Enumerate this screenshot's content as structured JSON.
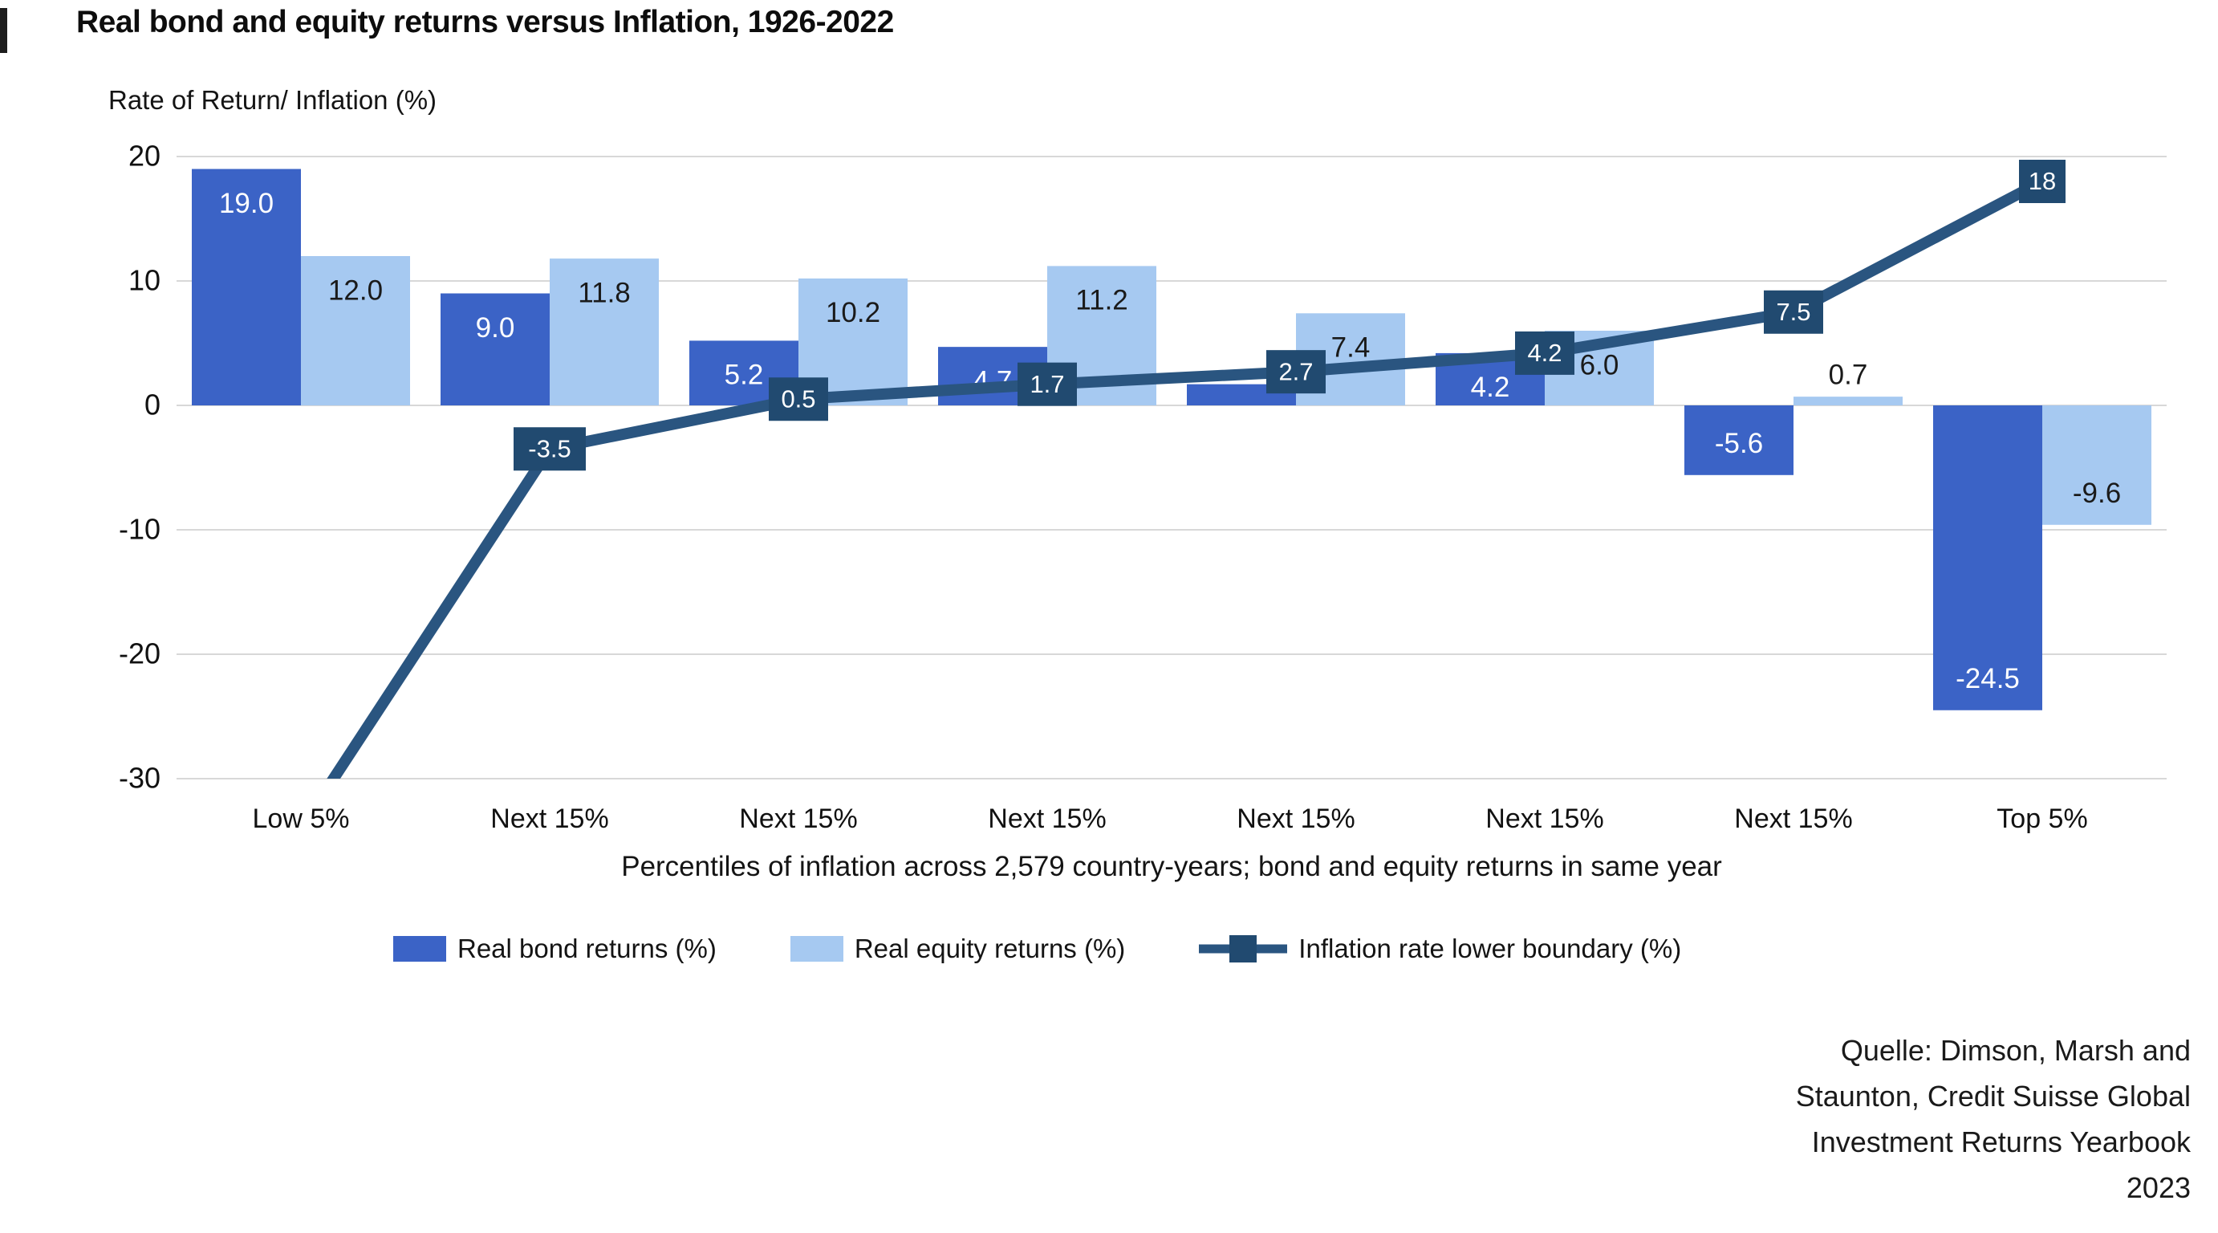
{
  "page": {
    "title": "Real bond and equity returns versus Inflation, 1926-2022"
  },
  "chart_data": {
    "type": "bar",
    "subtype": "grouped bars with overlaid line (square label markers)",
    "title": "Real bond and equity returns versus Inflation, 1926-2022",
    "y_axis_title": "Rate of Return/ Inflation (%)",
    "x_axis_title": "Percentiles of inflation across 2,579 country-years; bond and equity returns in same year",
    "categories": [
      "Low 5%",
      "Next 15%",
      "Next 15%",
      "Next 15%",
      "Next 15%",
      "Next 15%",
      "Next 15%",
      "Top 5%"
    ],
    "y_ticks": [
      20,
      10,
      0,
      -10,
      -20,
      -30
    ],
    "ylim": [
      -30,
      20
    ],
    "grid": true,
    "legend_position": "bottom",
    "series": [
      {
        "name": "Real bond returns (%)",
        "type": "bar",
        "color": "#3B63C6",
        "values": [
          19.0,
          9.0,
          5.2,
          4.7,
          1.7,
          4.2,
          -5.6,
          -24.5
        ],
        "labels": [
          "19.0",
          "9.0",
          "5.2",
          "4.7",
          null,
          "4.2",
          "-5.6",
          "-24.5"
        ],
        "label_color": "#ffffff"
      },
      {
        "name": "Real equity returns (%)",
        "type": "bar",
        "color": "#A6C9F1",
        "values": [
          12.0,
          11.8,
          10.2,
          11.2,
          7.4,
          6.0,
          0.7,
          -9.6
        ],
        "labels": [
          "12.0",
          "11.8",
          "10.2",
          "11.2",
          "7.4",
          "6.0",
          "0.7",
          "-9.6"
        ],
        "label_color": "#1a1a1a"
      },
      {
        "name": "Inflation rate lower boundary (%)",
        "type": "line",
        "color": "#2A5580",
        "marker_box_color": "#214A70",
        "marker_label_color": "#ffffff",
        "values": [
          -34,
          -3.5,
          0.5,
          1.7,
          2.7,
          4.2,
          7.5,
          18
        ],
        "labels": [
          null,
          "-3.5",
          "0.5",
          "1.7",
          "2.7",
          "4.2",
          "7.5",
          "18"
        ],
        "first_point_clipped_below_axis": true
      }
    ],
    "gridline_color": "#D8D8D8",
    "source_lines": [
      "Quelle: Dimson, Marsh and",
      "Staunton, Credit Suisse Global",
      "Investment Returns Yearbook",
      "2023"
    ]
  }
}
